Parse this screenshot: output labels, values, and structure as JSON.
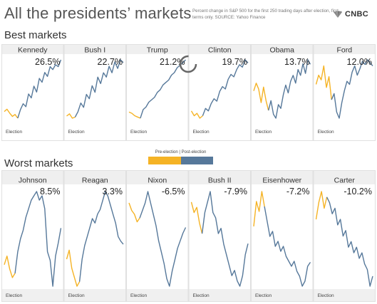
{
  "header": {
    "title": "All the presidents’ markets",
    "subtitle": "Percent change in S&P 500 for the first 250 trading days after election, first terms only. SOURCE: Yahoo Finance",
    "logo_text": "CNBC",
    "logo_icon": "peacock-icon"
  },
  "legend": {
    "label": "Pre-election | Post-election",
    "pre_color": "#f5b325",
    "post_color": "#56789a"
  },
  "sections": {
    "best": "Best markets",
    "worst": "Worst markets"
  },
  "election_label": "Election",
  "chart_data": [
    {
      "type": "line",
      "group": "Best markets",
      "panels": [
        {
          "name": "Kennedy",
          "change": "26.5%",
          "pre": [
            0,
            1.2,
            -0.8,
            -2.5,
            -1.5,
            -3.4
          ],
          "post": [
            -3.4,
            1,
            4,
            2.5,
            9,
            7,
            13,
            10,
            17,
            15,
            20,
            18,
            23,
            21.5,
            24,
            23,
            26.5
          ]
        },
        {
          "name": "Bush I",
          "change": "22.7%",
          "pre": [
            -2,
            -1,
            -3,
            -2.5
          ],
          "post": [
            -2.5,
            0,
            4,
            2,
            8,
            6,
            12,
            9,
            16,
            13,
            18,
            16,
            21,
            18,
            23,
            20,
            24,
            22.7
          ]
        },
        {
          "name": "Trump",
          "change": "21.2%",
          "pre": [
            0,
            -0.5,
            -1.5,
            -2,
            -2.5
          ],
          "post": [
            -2.5,
            1,
            2,
            4,
            5,
            6,
            8,
            9,
            11,
            12,
            13,
            15,
            16,
            18,
            19,
            20,
            21.2
          ]
        },
        {
          "name": "Clinton",
          "change": "19.7%",
          "pre": [
            0,
            -2,
            -1,
            -3,
            -2
          ],
          "post": [
            -2,
            1,
            0,
            3,
            5,
            4,
            8,
            10,
            9,
            13,
            15,
            14,
            17,
            19,
            18,
            21,
            19.7
          ]
        },
        {
          "name": "Obama",
          "change": "13.7%",
          "pre": [
            0,
            4,
            1,
            -6,
            2,
            -5,
            -10
          ],
          "post": [
            -10,
            -5,
            -12,
            -14,
            -7,
            -9,
            -2,
            3,
            -1,
            5,
            8,
            4,
            11,
            8,
            14,
            9,
            16,
            13.7
          ]
        },
        {
          "name": "Ford",
          "change": "12.0%",
          "pre": [
            0,
            6,
            3,
            12,
            -2,
            5,
            -10
          ],
          "post": [
            -10,
            -6,
            -18,
            -22,
            -12,
            -4,
            2,
            0,
            8,
            12,
            6,
            10,
            15,
            13,
            16,
            14,
            12
          ]
        }
      ]
    },
    {
      "type": "line",
      "group": "Worst markets",
      "panels": [
        {
          "name": "Johnson",
          "change": "8.5%",
          "pre": [
            0,
            2,
            -1,
            -3,
            -2
          ],
          "post": [
            -2,
            3,
            6,
            8,
            11,
            13,
            15,
            16,
            17,
            15,
            16,
            13,
            3,
            1,
            -5,
            2,
            5,
            8.5
          ]
        },
        {
          "name": "Reagan",
          "change": "3.3%",
          "pre": [
            0,
            2,
            -2,
            -4,
            -6,
            -5
          ],
          "post": [
            -5,
            0,
            3,
            5,
            7,
            9,
            8,
            10,
            11,
            13,
            15,
            14,
            12,
            10,
            8,
            5,
            4,
            3.3
          ]
        },
        {
          "name": "Nixon",
          "change": "-6.5%",
          "pre": [
            0,
            -2,
            -3,
            -5,
            -4
          ],
          "post": [
            -4,
            -2,
            0,
            3,
            0,
            -3,
            -6,
            -10,
            -13,
            -16,
            -20,
            -22,
            -18,
            -15,
            -12,
            -10,
            -8,
            -6.5
          ]
        },
        {
          "name": "Bush II",
          "change": "-7.9%",
          "pre": [
            0,
            -2,
            -1,
            -4,
            -6
          ],
          "post": [
            -6,
            -2,
            0,
            2,
            -2,
            -3,
            -6,
            -5,
            -8,
            -10,
            -12,
            -14,
            -13,
            -15,
            -16,
            -14,
            -10,
            -7.9
          ]
        },
        {
          "name": "Eisenhower",
          "change": "-7.2%",
          "pre": [
            0,
            5,
            3,
            7,
            4
          ],
          "post": [
            4,
            1,
            -2,
            -1,
            -4,
            -3,
            -5,
            -4,
            -6,
            -7,
            -8,
            -7,
            -9,
            -10,
            -12,
            -11,
            -8,
            -7.2
          ]
        },
        {
          "name": "Carter",
          "change": "-10.2%",
          "pre": [
            0,
            3,
            5,
            2,
            4
          ],
          "post": [
            4,
            3,
            1,
            2,
            -1,
            0,
            -3,
            -2,
            -5,
            -4,
            -6,
            -5,
            -7,
            -6,
            -8,
            -9,
            -12,
            -10.2
          ]
        }
      ]
    }
  ]
}
